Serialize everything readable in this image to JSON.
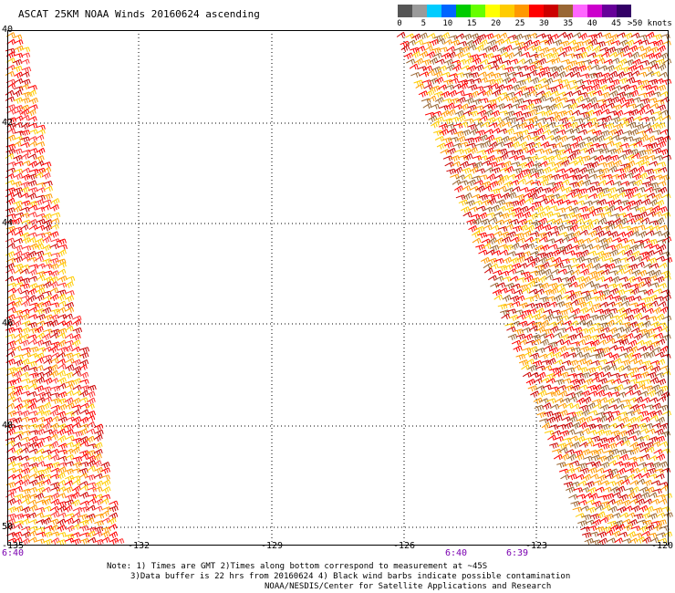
{
  "title": "ASCAT 25KM NOAA Winds 20160624 ascending",
  "scale": {
    "colors": [
      "#555555",
      "#9a9a9a",
      "#00ccff",
      "#0066ff",
      "#00cc00",
      "#66ff00",
      "#ffff00",
      "#ffcc00",
      "#ff9900",
      "#ff0000",
      "#cc0000",
      "#996633",
      "#ff66ff",
      "#cc00cc",
      "#660099",
      "#330066"
    ],
    "labels": [
      "0",
      "5",
      "10",
      "15",
      "20",
      "25",
      "30",
      "35",
      "40",
      "45"
    ],
    "units": ">50 knots"
  },
  "lat_labels": [
    "40",
    "42",
    "44",
    "46",
    "48",
    "50"
  ],
  "lon_labels": [
    "-135",
    "-132",
    "-129",
    "-126",
    "-123",
    "-120"
  ],
  "time_labels": [
    "6:40",
    "6:40",
    "6:39"
  ],
  "notes": {
    "line1": "Note: 1) Times are GMT 2)Times along bottom correspond to measurement at ~45S",
    "line2": "3)Data buffer is 22 hrs from 20160624 4) Black wind barbs indicate possible contamination",
    "line3": "NOAA/NESDIS/Center for Satellite Applications and Research"
  },
  "swaths": [
    {
      "name": "left",
      "wind_colors": [
        "#cc0000",
        "#ff0000",
        "#ff9900",
        "#ffcc00",
        "#ff3333"
      ]
    },
    {
      "name": "right",
      "wind_colors": [
        "#cc0000",
        "#ff0000",
        "#ff9900",
        "#ffcc00",
        "#996633"
      ]
    }
  ]
}
